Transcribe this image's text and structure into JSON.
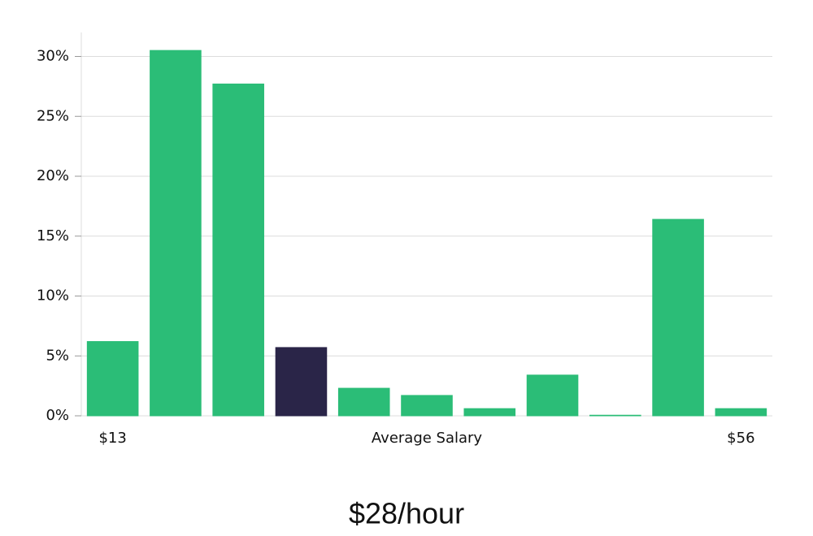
{
  "chart_data": {
    "type": "bar",
    "categories": [
      "$13",
      null,
      null,
      null,
      null,
      null,
      null,
      null,
      null,
      null,
      "$56"
    ],
    "values": [
      6.2,
      30.5,
      27.7,
      5.7,
      2.3,
      1.7,
      0.6,
      3.4,
      0.05,
      16.4,
      0.6
    ],
    "colors": [
      "#2bbd77",
      "#2bbd77",
      "#2bbd77",
      "#2a2548",
      "#2bbd77",
      "#2bbd77",
      "#2bbd77",
      "#2bbd77",
      "#2bbd77",
      "#2bbd77",
      "#2bbd77"
    ],
    "x_label": "Average Salary",
    "summary": "$28/hour",
    "ylim": [
      0,
      32
    ],
    "yticks": [
      {
        "value": 0,
        "label": "0%"
      },
      {
        "value": 5,
        "label": "5%"
      },
      {
        "value": 10,
        "label": "10%"
      },
      {
        "value": 15,
        "label": "15%"
      },
      {
        "value": 20,
        "label": "20%"
      },
      {
        "value": 25,
        "label": "25%"
      },
      {
        "value": 30,
        "label": "30%"
      }
    ],
    "grid": true
  }
}
